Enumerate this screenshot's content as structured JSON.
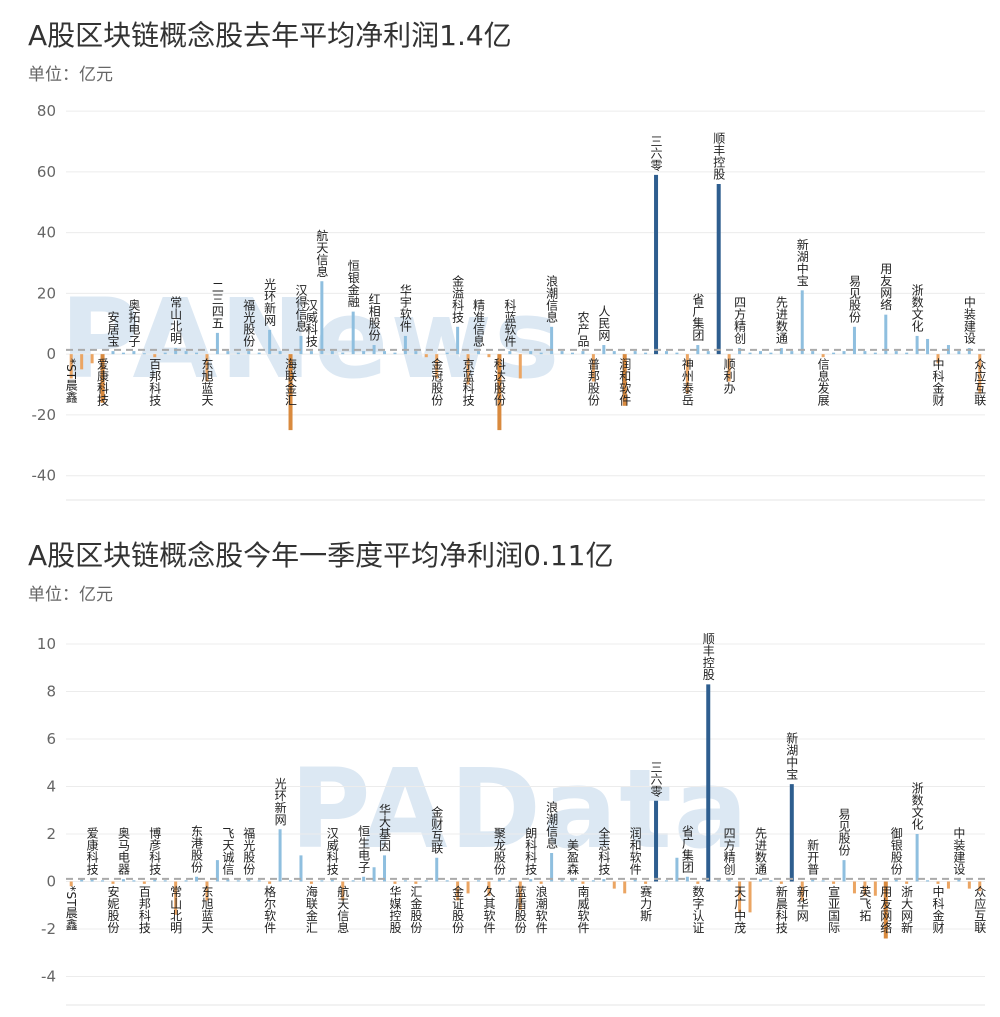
{
  "chart_data": [
    {
      "type": "bar",
      "title": "A股区块链概念股去年平均净利润1.4亿",
      "unit_label": "单位：亿元",
      "watermark": "PANews",
      "ylim": [
        -48,
        82
      ],
      "yticks": [
        80,
        60,
        40,
        20,
        0,
        -20,
        -40
      ],
      "average_line": 1.4,
      "grid": true,
      "colors": {
        "positive": "#8fbfdf",
        "negative": "#eba563",
        "highlight_positive": "#2e5e8f",
        "highlight_negative": "#d98a3e",
        "average_line": "#aaaaaa"
      },
      "bars": [
        {
          "label": "*ST晨鑫",
          "value": -8
        },
        {
          "label": "",
          "value": -5
        },
        {
          "label": "",
          "value": -3
        },
        {
          "label": "爱康科技",
          "value": -16,
          "highlight": true
        },
        {
          "label": "安居宝",
          "value": 1
        },
        {
          "label": "",
          "value": 0.5
        },
        {
          "label": "奥拓电子",
          "value": 1
        },
        {
          "label": "",
          "value": 0.3
        },
        {
          "label": "百邦科技",
          "value": -1
        },
        {
          "label": "",
          "value": 0.5
        },
        {
          "label": "常山北明",
          "value": 2
        },
        {
          "label": "",
          "value": 1
        },
        {
          "label": "",
          "value": 0.5
        },
        {
          "label": "东旭蓝天",
          "value": -9
        },
        {
          "label": "二三四五",
          "value": 7
        },
        {
          "label": "",
          "value": 1
        },
        {
          "label": "",
          "value": 0.5
        },
        {
          "label": "福光股份",
          "value": 1
        },
        {
          "label": "",
          "value": 0.5
        },
        {
          "label": "光环新网",
          "value": 8
        },
        {
          "label": "",
          "value": 1
        },
        {
          "label": "海联金汇",
          "value": -25,
          "highlight": true
        },
        {
          "label": "汉得信息",
          "value": 6
        },
        {
          "label": "汉威科技",
          "value": 1
        },
        {
          "label": "航天信息",
          "value": 24
        },
        {
          "label": "",
          "value": 1
        },
        {
          "label": "",
          "value": 0.5
        },
        {
          "label": "恒银金融",
          "value": 14
        },
        {
          "label": "",
          "value": 1
        },
        {
          "label": "红相股份",
          "value": 3
        },
        {
          "label": "",
          "value": 1
        },
        {
          "label": "",
          "value": 0.5
        },
        {
          "label": "华宇软件",
          "value": 6
        },
        {
          "label": "",
          "value": 1
        },
        {
          "label": "",
          "value": -1
        },
        {
          "label": "金冠股份",
          "value": -8
        },
        {
          "label": "",
          "value": 0.5
        },
        {
          "label": "金溢科技",
          "value": 9
        },
        {
          "label": "京蓝科技",
          "value": -10
        },
        {
          "label": "精准信息",
          "value": 1
        },
        {
          "label": "",
          "value": -1
        },
        {
          "label": "科达股份",
          "value": -25,
          "highlight": true
        },
        {
          "label": "科蓝软件",
          "value": 1
        },
        {
          "label": "",
          "value": -8
        },
        {
          "label": "",
          "value": 1
        },
        {
          "label": "",
          "value": 0.5
        },
        {
          "label": "浪潮信息",
          "value": 9
        },
        {
          "label": "",
          "value": 1
        },
        {
          "label": "",
          "value": 0.5
        },
        {
          "label": "农产品",
          "value": 1
        },
        {
          "label": "普邦股份",
          "value": -9
        },
        {
          "label": "人民网",
          "value": 3
        },
        {
          "label": "",
          "value": 1
        },
        {
          "label": "润和软件",
          "value": -17,
          "highlight": true
        },
        {
          "label": "",
          "value": 1
        },
        {
          "label": "",
          "value": 0.5
        },
        {
          "label": "三六零",
          "value": 59,
          "highlight": true
        },
        {
          "label": "",
          "value": 1
        },
        {
          "label": "",
          "value": 0.5
        },
        {
          "label": "神州泰岳",
          "value": -13
        },
        {
          "label": "省广集团",
          "value": 3
        },
        {
          "label": "",
          "value": 1
        },
        {
          "label": "顺丰控股",
          "value": 56,
          "highlight": true
        },
        {
          "label": "顺利办",
          "value": -9
        },
        {
          "label": "四方精创",
          "value": 2
        },
        {
          "label": "",
          "value": 0.5
        },
        {
          "label": "",
          "value": 1
        },
        {
          "label": "",
          "value": 0.5
        },
        {
          "label": "先进数通",
          "value": 2
        },
        {
          "label": "",
          "value": 1
        },
        {
          "label": "新湖中宝",
          "value": 21
        },
        {
          "label": "",
          "value": 1
        },
        {
          "label": "信息发展",
          "value": -1
        },
        {
          "label": "",
          "value": 0.5
        },
        {
          "label": "",
          "value": 1
        },
        {
          "label": "易见股份",
          "value": 9
        },
        {
          "label": "",
          "value": 1
        },
        {
          "label": "",
          "value": 0.5
        },
        {
          "label": "用友网络",
          "value": 13
        },
        {
          "label": "",
          "value": 1
        },
        {
          "label": "",
          "value": 0.5
        },
        {
          "label": "浙数文化",
          "value": 6
        },
        {
          "label": "",
          "value": 5
        },
        {
          "label": "中科金财",
          "value": -3
        },
        {
          "label": "",
          "value": 3
        },
        {
          "label": "",
          "value": 1
        },
        {
          "label": "中装建设",
          "value": 2
        },
        {
          "label": "众应互联",
          "value": -13
        }
      ]
    },
    {
      "type": "bar",
      "title": "A股区块链概念股今年一季度平均净利润0.11亿",
      "unit_label": "单位：亿元",
      "watermark": "PAData",
      "ylim": [
        -5.2,
        10.8
      ],
      "yticks": [
        10,
        8,
        6,
        4,
        2,
        0,
        -2,
        -4
      ],
      "average_line": 0.11,
      "grid": true,
      "colors": {
        "positive": "#8fbfdf",
        "negative": "#eba563",
        "highlight_positive": "#2e5e8f",
        "highlight_negative": "#d98a3e",
        "average_line": "#aaaaaa"
      },
      "bars": [
        {
          "label": "*ST晨鑫",
          "value": -0.2
        },
        {
          "label": "",
          "value": 0.1
        },
        {
          "label": "爱康科技",
          "value": 0.1
        },
        {
          "label": "",
          "value": 0.05
        },
        {
          "label": "安妮股份",
          "value": -0.1
        },
        {
          "label": "奥马电器",
          "value": 0.1
        },
        {
          "label": "",
          "value": 0.05
        },
        {
          "label": "百邦科技",
          "value": -0.1
        },
        {
          "label": "博彦科技",
          "value": 0.1
        },
        {
          "label": "",
          "value": 0.05
        },
        {
          "label": "常山北明",
          "value": -1.4
        },
        {
          "label": "",
          "value": 0.05
        },
        {
          "label": "东港股份",
          "value": 0.2
        },
        {
          "label": "东旭蓝天",
          "value": -0.8
        },
        {
          "label": "",
          "value": 0.9
        },
        {
          "label": "飞天诚信",
          "value": 0.1
        },
        {
          "label": "",
          "value": 0.05
        },
        {
          "label": "福光股份",
          "value": 0.1
        },
        {
          "label": "",
          "value": 0.05
        },
        {
          "label": "格尔软件",
          "value": -0.1
        },
        {
          "label": "光环新网",
          "value": 2.2
        },
        {
          "label": "",
          "value": 0.05
        },
        {
          "label": "",
          "value": 1.1
        },
        {
          "label": "海联金汇",
          "value": -0.1
        },
        {
          "label": "",
          "value": 0.05
        },
        {
          "label": "汉威科技",
          "value": 0.1
        },
        {
          "label": "航天信息",
          "value": -0.8
        },
        {
          "label": "",
          "value": 0.05
        },
        {
          "label": "恒生电子",
          "value": 0.2
        },
        {
          "label": "",
          "value": 0.6
        },
        {
          "label": "华大基因",
          "value": 1.1
        },
        {
          "label": "华媒控股",
          "value": -0.1
        },
        {
          "label": "",
          "value": 0.05
        },
        {
          "label": "汇金股份",
          "value": -0.1
        },
        {
          "label": "",
          "value": 0.05
        },
        {
          "label": "金财互联",
          "value": 1.0
        },
        {
          "label": "",
          "value": 0.05
        },
        {
          "label": "金证股份",
          "value": -0.8
        },
        {
          "label": "",
          "value": -0.5
        },
        {
          "label": "",
          "value": 0.05
        },
        {
          "label": "久其软件",
          "value": -0.6
        },
        {
          "label": "聚龙股份",
          "value": 0.1
        },
        {
          "label": "",
          "value": 0.05
        },
        {
          "label": "蓝盾股份",
          "value": -1.2
        },
        {
          "label": "朗科科技",
          "value": 0.1
        },
        {
          "label": "浪潮软件",
          "value": -0.1
        },
        {
          "label": "浪潮信息",
          "value": 1.2
        },
        {
          "label": "",
          "value": 0.05
        },
        {
          "label": "美盈森",
          "value": 0.1
        },
        {
          "label": "南威软件",
          "value": -0.1
        },
        {
          "label": "",
          "value": 0.05
        },
        {
          "label": "全志科技",
          "value": 0.1
        },
        {
          "label": "",
          "value": -0.3
        },
        {
          "label": "",
          "value": -0.5
        },
        {
          "label": "润和软件",
          "value": 0.1
        },
        {
          "label": "赛力斯",
          "value": -0.1
        },
        {
          "label": "三六零",
          "value": 3.4,
          "highlight": true
        },
        {
          "label": "",
          "value": 0.05
        },
        {
          "label": "",
          "value": 1.0
        },
        {
          "label": "省广集团",
          "value": 0.2
        },
        {
          "label": "数字认证",
          "value": -0.1
        },
        {
          "label": "顺丰控股",
          "value": 8.3,
          "highlight": true
        },
        {
          "label": "",
          "value": 0.05
        },
        {
          "label": "四方精创",
          "value": 0.1
        },
        {
          "label": "天广中茂",
          "value": -1.3
        },
        {
          "label": "",
          "value": -1.3
        },
        {
          "label": "先进数通",
          "value": 0.1
        },
        {
          "label": "",
          "value": 0.05
        },
        {
          "label": "新晨科技",
          "value": -0.1
        },
        {
          "label": "新湖中宝",
          "value": 4.1,
          "highlight": true
        },
        {
          "label": "新华网",
          "value": -0.8
        },
        {
          "label": "新开普",
          "value": 0.1
        },
        {
          "label": "",
          "value": 0.05
        },
        {
          "label": "宣亚国际",
          "value": -0.1
        },
        {
          "label": "易见股份",
          "value": 0.9
        },
        {
          "label": "",
          "value": -0.5
        },
        {
          "label": "英飞拓",
          "value": -0.6
        },
        {
          "label": "",
          "value": -0.6
        },
        {
          "label": "用友网络",
          "value": -2.4,
          "highlight": true
        },
        {
          "label": "御银股份",
          "value": 0.1
        },
        {
          "label": "浙大网新",
          "value": -0.1
        },
        {
          "label": "浙数文化",
          "value": 2.0
        },
        {
          "label": "",
          "value": 0.05
        },
        {
          "label": "中科金财",
          "value": -0.1
        },
        {
          "label": "",
          "value": -0.3
        },
        {
          "label": "中装建设",
          "value": 0.1
        },
        {
          "label": "",
          "value": -0.3
        },
        {
          "label": "众应互联",
          "value": -0.4
        }
      ]
    }
  ]
}
